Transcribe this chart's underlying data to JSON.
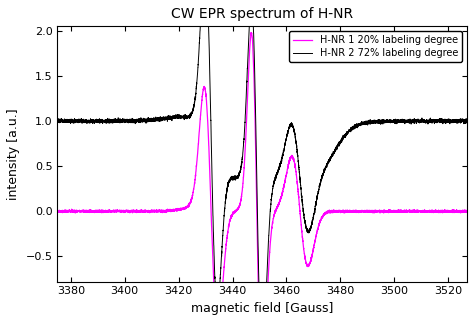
{
  "title": "CW EPR spectrum of H-NR",
  "xlabel": "magnetic field [Gauss]",
  "ylabel": "intensity [a.u.]",
  "xlim": [
    3375,
    3527
  ],
  "ylim": [
    -0.78,
    2.05
  ],
  "yticks": [
    -0.5,
    0,
    0.5,
    1.0,
    1.5,
    2.0
  ],
  "xticks": [
    3380,
    3400,
    3420,
    3440,
    3460,
    3480,
    3500,
    3520
  ],
  "legend": [
    {
      "label": "H-NR 1 20% labeling degree",
      "color": "#FF00FF"
    },
    {
      "label": "H-NR 2 72% labeling degree",
      "color": "#000000"
    }
  ],
  "background_color": "#ffffff",
  "title_fontsize": 10,
  "axis_fontsize": 9,
  "tick_fontsize": 8
}
